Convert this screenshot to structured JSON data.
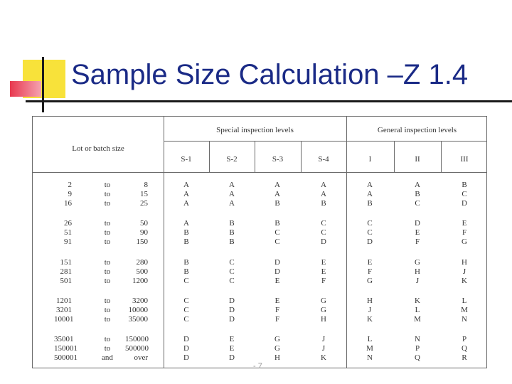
{
  "slide": {
    "title": "Sample Size Calculation –Z 1.4",
    "footer": "- 7"
  },
  "table": {
    "lot_header": "Lot or batch size",
    "special_header": "Special inspection levels",
    "general_header": "General inspection levels",
    "columns": [
      "S-1",
      "S-2",
      "S-3",
      "S-4",
      "I",
      "II",
      "III"
    ],
    "groups": [
      {
        "rows": [
          {
            "from": "2",
            "word": "to",
            "to": "8",
            "codes": [
              "A",
              "A",
              "A",
              "A",
              "A",
              "A",
              "B"
            ]
          },
          {
            "from": "9",
            "word": "to",
            "to": "15",
            "codes": [
              "A",
              "A",
              "A",
              "A",
              "A",
              "B",
              "C"
            ]
          },
          {
            "from": "16",
            "word": "to",
            "to": "25",
            "codes": [
              "A",
              "A",
              "B",
              "B",
              "B",
              "C",
              "D"
            ]
          }
        ]
      },
      {
        "rows": [
          {
            "from": "26",
            "word": "to",
            "to": "50",
            "codes": [
              "A",
              "B",
              "B",
              "C",
              "C",
              "D",
              "E"
            ]
          },
          {
            "from": "51",
            "word": "to",
            "to": "90",
            "codes": [
              "B",
              "B",
              "C",
              "C",
              "C",
              "E",
              "F"
            ]
          },
          {
            "from": "91",
            "word": "to",
            "to": "150",
            "codes": [
              "B",
              "B",
              "C",
              "D",
              "D",
              "F",
              "G"
            ]
          }
        ]
      },
      {
        "rows": [
          {
            "from": "151",
            "word": "to",
            "to": "280",
            "codes": [
              "B",
              "C",
              "D",
              "E",
              "E",
              "G",
              "H"
            ]
          },
          {
            "from": "281",
            "word": "to",
            "to": "500",
            "codes": [
              "B",
              "C",
              "D",
              "E",
              "F",
              "H",
              "J"
            ]
          },
          {
            "from": "501",
            "word": "to",
            "to": "1200",
            "codes": [
              "C",
              "C",
              "E",
              "F",
              "G",
              "J",
              "K"
            ]
          }
        ]
      },
      {
        "rows": [
          {
            "from": "1201",
            "word": "to",
            "to": "3200",
            "codes": [
              "C",
              "D",
              "E",
              "G",
              "H",
              "K",
              "L"
            ]
          },
          {
            "from": "3201",
            "word": "to",
            "to": "10000",
            "codes": [
              "C",
              "D",
              "F",
              "G",
              "J",
              "L",
              "M"
            ]
          },
          {
            "from": "10001",
            "word": "to",
            "to": "35000",
            "codes": [
              "C",
              "D",
              "F",
              "H",
              "K",
              "M",
              "N"
            ]
          }
        ]
      },
      {
        "rows": [
          {
            "from": "35001",
            "word": "to",
            "to": "150000",
            "codes": [
              "D",
              "E",
              "G",
              "J",
              "L",
              "N",
              "P"
            ]
          },
          {
            "from": "150001",
            "word": "to",
            "to": "500000",
            "codes": [
              "D",
              "E",
              "G",
              "J",
              "M",
              "P",
              "Q"
            ]
          },
          {
            "from": "500001",
            "word": "and",
            "to": "over",
            "codes": [
              "D",
              "D",
              "H",
              "K",
              "N",
              "Q",
              "R"
            ]
          }
        ]
      }
    ]
  }
}
